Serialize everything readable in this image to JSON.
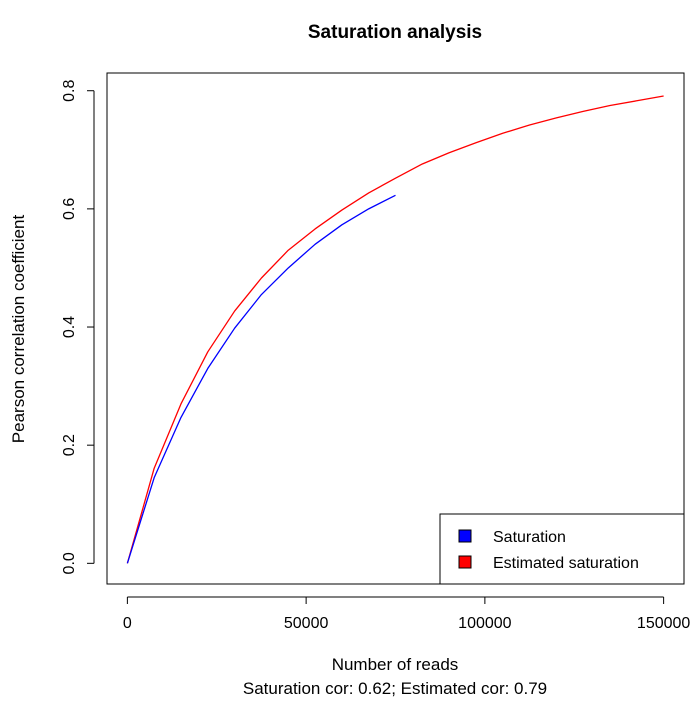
{
  "chart_data": {
    "type": "line",
    "title": "Saturation analysis",
    "xlabel": "Number of reads",
    "subtitle": "Saturation cor: 0.62; Estimated cor: 0.79",
    "ylabel": "Pearson correlation coefficient",
    "xlim": [
      -5700,
      155700
    ],
    "ylim": [
      -0.035,
      0.83
    ],
    "xticks": [
      0,
      50000,
      100000,
      150000
    ],
    "xtick_labels": [
      "0",
      "50000",
      "100000",
      "150000"
    ],
    "yticks": [
      0.0,
      0.2,
      0.4,
      0.6,
      0.8
    ],
    "ytick_labels": [
      "0.0",
      "0.2",
      "0.4",
      "0.6",
      "0.8"
    ],
    "grid": false,
    "legend_position": "bottom-right",
    "series": [
      {
        "name": "Saturation",
        "color": "#0000ff",
        "x": [
          0,
          7500,
          15000,
          22500,
          30000,
          37500,
          45000,
          52500,
          60000,
          67500,
          75000
        ],
        "y": [
          0.0,
          0.145,
          0.247,
          0.33,
          0.398,
          0.455,
          0.5,
          0.54,
          0.573,
          0.6,
          0.623
        ]
      },
      {
        "name": "Estimated saturation",
        "color": "#ff0000",
        "x": [
          0,
          7500,
          15000,
          22500,
          30000,
          37500,
          45000,
          52500,
          60000,
          67500,
          75000,
          82500,
          90000,
          97500,
          105000,
          112500,
          120000,
          127500,
          135000,
          142500,
          150000
        ],
        "y": [
          0.0,
          0.161,
          0.27,
          0.358,
          0.427,
          0.483,
          0.53,
          0.566,
          0.598,
          0.627,
          0.652,
          0.676,
          0.695,
          0.712,
          0.728,
          0.742,
          0.754,
          0.765,
          0.775,
          0.783,
          0.791
        ]
      }
    ]
  }
}
